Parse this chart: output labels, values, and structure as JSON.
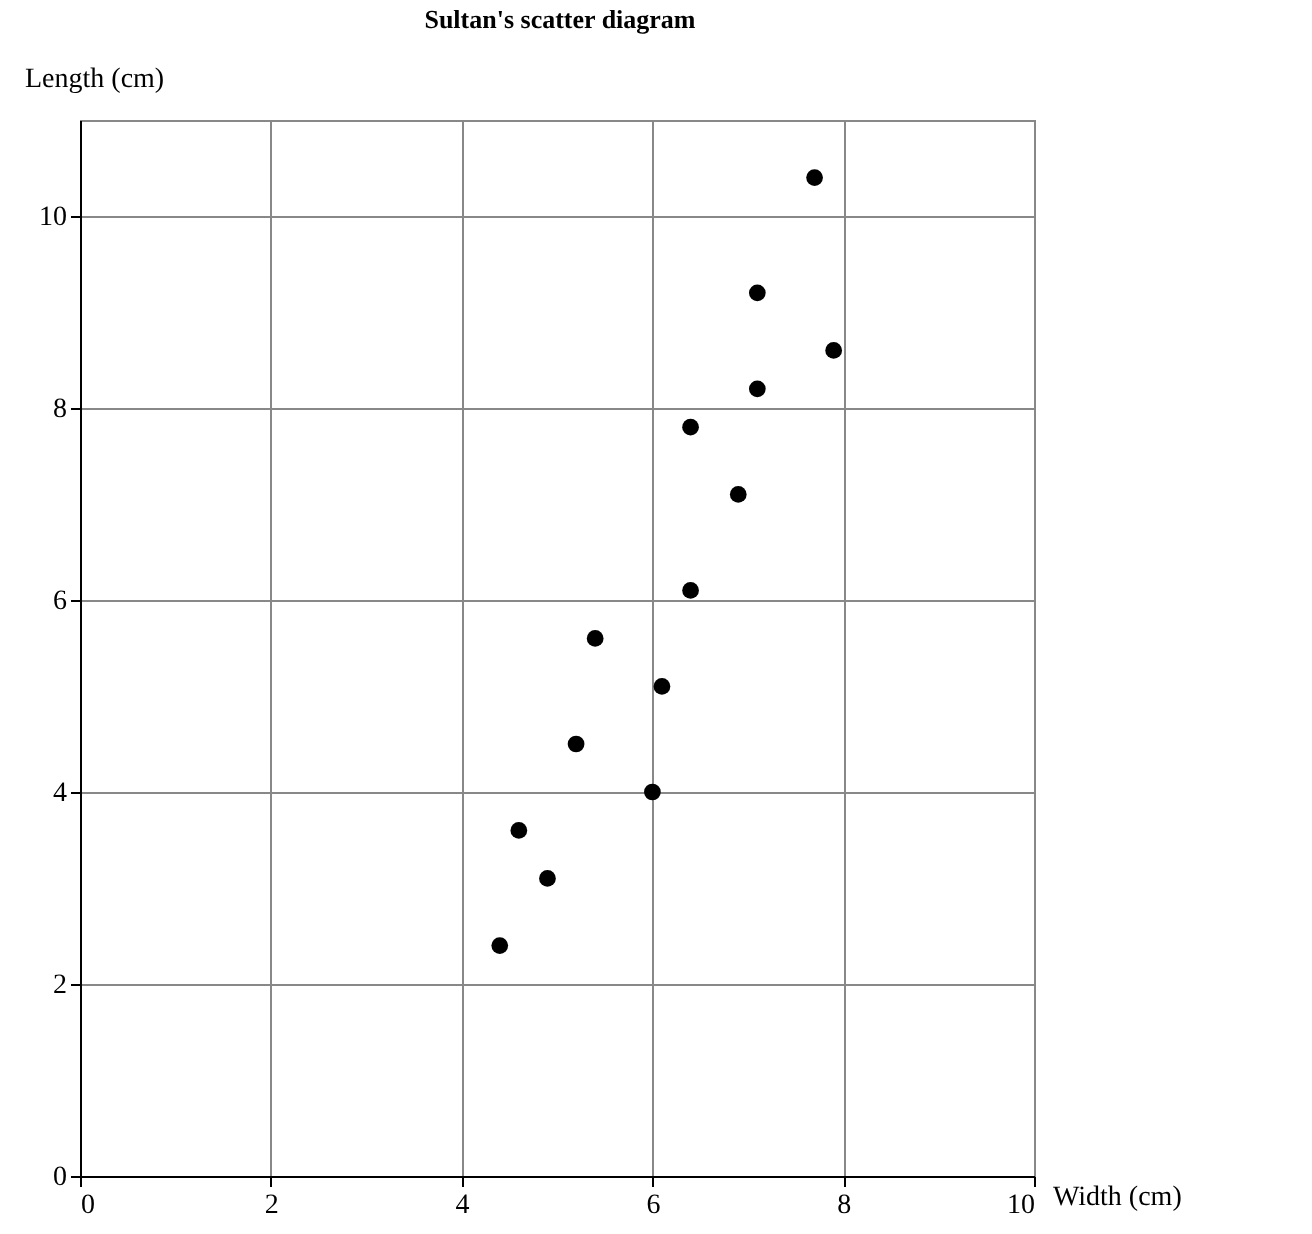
{
  "chart_data": {
    "type": "scatter",
    "title": "Sultan's scatter diagram",
    "xlabel": "Width (cm)",
    "ylabel": "Length (cm)",
    "x": [
      4.4,
      4.9,
      4.6,
      5.2,
      6.0,
      6.1,
      5.4,
      6.4,
      6.9,
      6.4,
      7.1,
      7.9,
      7.1,
      7.7
    ],
    "series": [
      {
        "color": "#000000",
        "values": [
          2.4,
          3.1,
          3.6,
          4.5,
          4.0,
          5.1,
          5.6,
          6.1,
          7.1,
          7.8,
          8.2,
          8.6,
          9.2,
          10.4
        ]
      }
    ],
    "xlim": [
      0,
      10
    ],
    "ylim": [
      0,
      11
    ],
    "xticks": [
      0,
      2,
      4,
      6,
      8,
      10
    ],
    "yticks": [
      0,
      2,
      4,
      6,
      8,
      10
    ],
    "grid": true,
    "marker": "circle",
    "legend": false
  }
}
